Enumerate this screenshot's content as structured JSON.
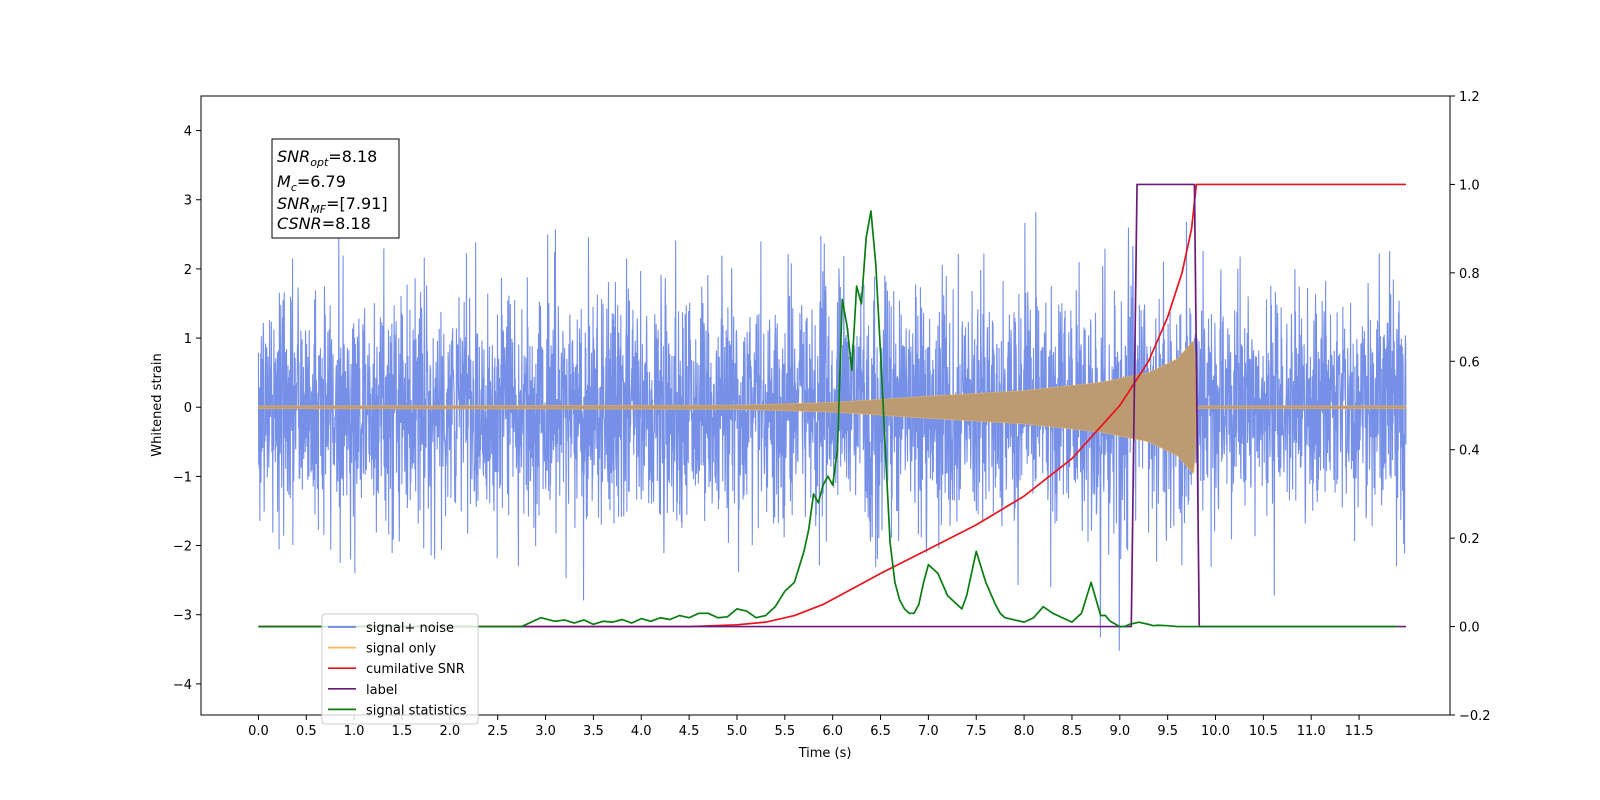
{
  "chart_data": {
    "type": "line",
    "xlabel": "Time (s)",
    "ylabel": "Whitened strain",
    "xlim": [
      -0.6,
      12.45
    ],
    "ylim": [
      -4.45,
      4.5
    ],
    "y2lim": [
      -0.2,
      1.2
    ],
    "x_ticks": [
      "0.0",
      "0.5",
      "1.0",
      "1.5",
      "2.0",
      "2.5",
      "3.0",
      "3.5",
      "4.0",
      "4.5",
      "5.0",
      "5.5",
      "6.0",
      "6.5",
      "7.0",
      "7.5",
      "8.0",
      "8.5",
      "9.0",
      "9.5",
      "10.0",
      "10.5",
      "11.0",
      "11.5"
    ],
    "y_ticks": [
      "4",
      "3",
      "2",
      "1",
      "0",
      "−1",
      "−2",
      "−3",
      "−4"
    ],
    "y2_ticks": [
      "1.2",
      "1.0",
      "0.8",
      "0.6",
      "0.4",
      "0.2",
      "0.0",
      "−0.2"
    ],
    "legend_position": "lower-left",
    "info_box": {
      "snr_opt": "=8.18",
      "mc": "=6.79",
      "snr_mf": "=[7.91]",
      "csnr": "=8.18"
    },
    "series": [
      {
        "name": "signal+ noise",
        "axis": "left",
        "color": "#6a87e6",
        "x_range": [
          0.0,
          11.99
        ],
        "std": 0.85
      },
      {
        "name": "signal only",
        "axis": "left",
        "color": "#f5b85a",
        "x_range": [
          0.0,
          11.99
        ],
        "envelope": [
          [
            0,
            0.02
          ],
          [
            5.0,
            0.03
          ],
          [
            6.0,
            0.07
          ],
          [
            7.0,
            0.16
          ],
          [
            8.0,
            0.24
          ],
          [
            8.8,
            0.36
          ],
          [
            9.3,
            0.5
          ],
          [
            9.6,
            0.7
          ],
          [
            9.78,
            0.98
          ],
          [
            9.8,
            0.02
          ],
          [
            11.99,
            0.02
          ]
        ]
      },
      {
        "name": "cumilative SNR",
        "axis": "right",
        "color": "#e8141c",
        "x": [
          0.0,
          4.5,
          5.0,
          5.3,
          5.6,
          5.9,
          6.2,
          6.5,
          7.0,
          7.5,
          8.0,
          8.5,
          9.0,
          9.3,
          9.5,
          9.65,
          9.75,
          9.8,
          11.99
        ],
        "y": [
          0.0,
          0.0,
          0.004,
          0.01,
          0.025,
          0.05,
          0.085,
          0.12,
          0.175,
          0.23,
          0.295,
          0.38,
          0.5,
          0.6,
          0.7,
          0.8,
          0.9,
          1.0,
          1.0
        ]
      },
      {
        "name": "label",
        "axis": "right",
        "color": "#6a1b7a",
        "x": [
          0.0,
          9.12,
          9.18,
          9.78,
          9.83,
          11.99
        ],
        "y": [
          0.0,
          0.0,
          1.0,
          1.0,
          0.0,
          0.0
        ]
      },
      {
        "name": "signal statistics",
        "axis": "right",
        "color": "#0a7d12",
        "x": [
          0.0,
          2.75,
          2.95,
          3.1,
          3.2,
          3.3,
          3.4,
          3.5,
          3.6,
          3.7,
          3.8,
          3.9,
          4.0,
          4.1,
          4.2,
          4.3,
          4.4,
          4.5,
          4.6,
          4.7,
          4.8,
          4.9,
          5.0,
          5.1,
          5.2,
          5.3,
          5.4,
          5.5,
          5.6,
          5.7,
          5.75,
          5.8,
          5.85,
          5.9,
          5.95,
          6.0,
          6.05,
          6.1,
          6.15,
          6.2,
          6.25,
          6.3,
          6.35,
          6.4,
          6.45,
          6.5,
          6.55,
          6.6,
          6.65,
          6.7,
          6.75,
          6.8,
          6.85,
          6.9,
          6.95,
          7.0,
          7.1,
          7.2,
          7.3,
          7.35,
          7.4,
          7.5,
          7.6,
          7.7,
          7.75,
          7.8,
          7.9,
          8.0,
          8.1,
          8.2,
          8.3,
          8.35,
          8.4,
          8.5,
          8.6,
          8.7,
          8.8,
          8.85,
          8.9,
          9.0,
          9.05,
          9.1,
          9.2,
          9.3,
          9.35,
          9.4,
          9.5,
          9.6,
          9.8,
          11.9
        ],
        "y": [
          0.0,
          0.0,
          0.02,
          0.012,
          0.015,
          0.008,
          0.015,
          0.005,
          0.012,
          0.01,
          0.016,
          0.008,
          0.018,
          0.012,
          0.02,
          0.016,
          0.025,
          0.02,
          0.03,
          0.03,
          0.02,
          0.022,
          0.04,
          0.035,
          0.02,
          0.025,
          0.045,
          0.08,
          0.1,
          0.17,
          0.22,
          0.3,
          0.28,
          0.32,
          0.34,
          0.32,
          0.4,
          0.74,
          0.68,
          0.58,
          0.77,
          0.73,
          0.88,
          0.94,
          0.82,
          0.62,
          0.4,
          0.19,
          0.1,
          0.06,
          0.04,
          0.03,
          0.03,
          0.05,
          0.1,
          0.14,
          0.12,
          0.07,
          0.05,
          0.04,
          0.07,
          0.17,
          0.1,
          0.05,
          0.03,
          0.02,
          0.015,
          0.01,
          0.02,
          0.045,
          0.03,
          0.025,
          0.02,
          0.01,
          0.03,
          0.1,
          0.025,
          0.025,
          0.012,
          0.0,
          0.0,
          0.005,
          0.01,
          0.005,
          0.002,
          0.003,
          0.002,
          0.0,
          0.0,
          0.0
        ]
      }
    ]
  }
}
